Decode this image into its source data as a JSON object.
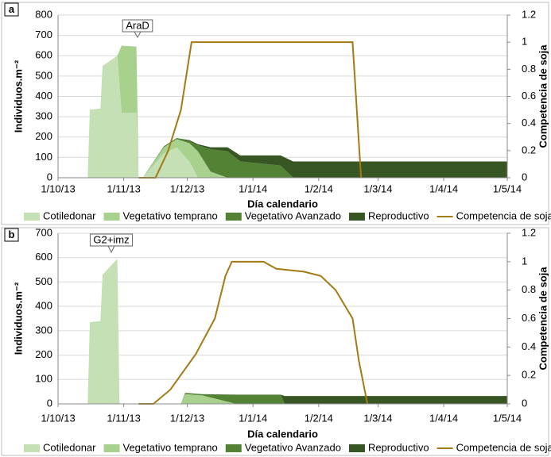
{
  "chart_data": [
    {
      "type": "stacked-area",
      "panel_label": "a",
      "annotations": [
        {
          "text": "AraD"
        }
      ],
      "xlabel": "Día calendario",
      "ylabel": "Individuos.m⁻²",
      "y2label": "Competencia de soja",
      "xlim": [
        "2013-10-01",
        "2014-05-01"
      ],
      "xticks": [
        {
          "value": "2013-10-01",
          "label": "1/10/13"
        },
        {
          "value": "2013-11-01",
          "label": "1/11/13"
        },
        {
          "value": "2013-12-01",
          "label": "1/12/13"
        },
        {
          "value": "2014-01-01",
          "label": "1/1/14"
        },
        {
          "value": "2014-02-01",
          "label": "1/2/14"
        },
        {
          "value": "2014-03-01",
          "label": "1/3/14"
        },
        {
          "value": "2014-04-01",
          "label": "1/4/14"
        },
        {
          "value": "2014-05-01",
          "label": "1/5/14"
        }
      ],
      "ylim": [
        0,
        800
      ],
      "yticks": [
        0,
        100,
        200,
        300,
        400,
        500,
        600,
        700,
        800
      ],
      "y2lim": [
        0,
        1.2
      ],
      "y2ticks": [
        0,
        0.2,
        0.4,
        0.6,
        0.8,
        1,
        1.2
      ],
      "grid": true,
      "x": [
        "2013-10-15",
        "2013-10-16",
        "2013-10-21",
        "2013-10-22",
        "2013-10-29",
        "2013-10-31",
        "2013-11-07",
        "2013-11-08",
        "2013-11-10",
        "2013-11-20",
        "2013-11-26",
        "2013-12-02",
        "2013-12-06",
        "2013-12-12",
        "2013-12-20",
        "2013-12-26",
        "2014-01-14",
        "2014-01-20",
        "2014-05-01"
      ],
      "series": [
        {
          "name": "Cotiledonar",
          "color": "#c5e0b4",
          "values": [
            0,
            335,
            340,
            550,
            600,
            320,
            320,
            0,
            0,
            120,
            150,
            80,
            0,
            0,
            0,
            0,
            0,
            0,
            0
          ]
        },
        {
          "name": "Vegetativo temprano",
          "color": "#a9d18e",
          "values": [
            0,
            0,
            0,
            0,
            0,
            330,
            325,
            0,
            0,
            30,
            40,
            90,
            130,
            30,
            0,
            0,
            0,
            0,
            0
          ]
        },
        {
          "name": "Vegetativo Avanzado",
          "color": "#548235",
          "values": [
            0,
            0,
            0,
            0,
            0,
            0,
            0,
            0,
            0,
            5,
            5,
            10,
            30,
            110,
            130,
            80,
            60,
            0,
            0
          ]
        },
        {
          "name": "Reproductivo",
          "color": "#375623",
          "values": [
            0,
            0,
            0,
            0,
            0,
            0,
            0,
            0,
            0,
            0,
            0,
            5,
            5,
            10,
            20,
            30,
            50,
            80,
            80
          ]
        },
        {
          "name": "Competencia de soja",
          "color": "#a47a14",
          "axis": "y2",
          "kind": "line",
          "x": [
            "2013-11-08",
            "2013-11-16",
            "2013-11-22",
            "2013-11-28",
            "2013-12-03",
            "2014-02-17",
            "2014-02-21"
          ],
          "values": [
            0,
            0,
            0.2,
            0.5,
            1,
            1,
            0
          ]
        }
      ]
    },
    {
      "type": "stacked-area",
      "panel_label": "b",
      "annotations": [
        {
          "text": "G2+imz"
        }
      ],
      "xlabel": "Día calendario",
      "ylabel": "Individuos.m⁻²",
      "y2label": "Competencia de soja",
      "xlim": [
        "2013-10-01",
        "2014-05-01"
      ],
      "xticks": [
        {
          "value": "2013-10-01",
          "label": "1/10/13"
        },
        {
          "value": "2013-11-01",
          "label": "1/11/13"
        },
        {
          "value": "2013-12-01",
          "label": "1/12/13"
        },
        {
          "value": "2014-01-01",
          "label": "1/1/14"
        },
        {
          "value": "2014-02-01",
          "label": "1/2/14"
        },
        {
          "value": "2014-03-01",
          "label": "1/3/14"
        },
        {
          "value": "2014-04-01",
          "label": "1/4/14"
        },
        {
          "value": "2014-05-01",
          "label": "1/5/14"
        }
      ],
      "ylim": [
        0,
        700
      ],
      "yticks": [
        0,
        100,
        200,
        300,
        400,
        500,
        600,
        700
      ],
      "y2lim": [
        0,
        1.2
      ],
      "y2ticks": [
        0,
        0.2,
        0.4,
        0.6,
        0.8,
        1,
        1.2
      ],
      "grid": true,
      "x": [
        "2013-10-15",
        "2013-10-16",
        "2013-10-21",
        "2013-10-22",
        "2013-10-29",
        "2013-10-30",
        "2013-11-28",
        "2013-11-30",
        "2013-12-08",
        "2013-12-24",
        "2014-01-14",
        "2014-01-16",
        "2014-05-01"
      ],
      "series": [
        {
          "name": "Cotiledonar",
          "color": "#c5e0b4",
          "values": [
            0,
            335,
            340,
            530,
            595,
            0,
            0,
            0,
            0,
            0,
            0,
            0,
            0
          ]
        },
        {
          "name": "Vegetativo temprano",
          "color": "#a9d18e",
          "values": [
            0,
            0,
            0,
            0,
            0,
            0,
            0,
            40,
            35,
            0,
            0,
            0,
            0
          ]
        },
        {
          "name": "Vegetativo Avanzado",
          "color": "#548235",
          "values": [
            0,
            0,
            0,
            0,
            0,
            0,
            0,
            5,
            5,
            38,
            38,
            0,
            0
          ]
        },
        {
          "name": "Reproductivo",
          "color": "#375623",
          "values": [
            0,
            0,
            0,
            0,
            0,
            0,
            0,
            0,
            0,
            0,
            0,
            32,
            32
          ]
        },
        {
          "name": "Competencia de soja",
          "color": "#a47a14",
          "axis": "y2",
          "kind": "line",
          "x": [
            "2013-11-08",
            "2013-11-15",
            "2013-11-23",
            "2013-12-05",
            "2013-12-14",
            "2013-12-19",
            "2013-12-22",
            "2014-01-06",
            "2014-01-12",
            "2014-01-25",
            "2014-02-02",
            "2014-02-09",
            "2014-02-17",
            "2014-02-20",
            "2014-02-24"
          ],
          "values": [
            0,
            0,
            0.1,
            0.35,
            0.6,
            0.9,
            1,
            1,
            0.95,
            0.93,
            0.9,
            0.8,
            0.6,
            0.3,
            0
          ]
        }
      ]
    }
  ]
}
